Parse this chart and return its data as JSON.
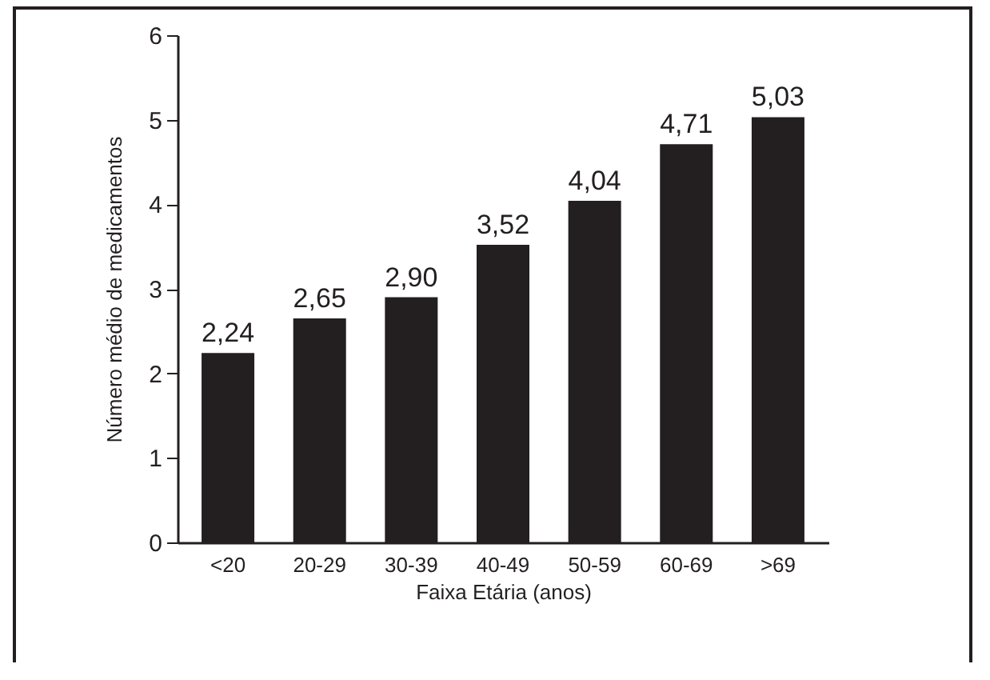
{
  "chart_data": {
    "type": "bar",
    "xlabel": "Faixa Etária (anos)",
    "ylabel": "Número médio de medicamentos",
    "categories": [
      "<20",
      "20-29",
      "30-39",
      "40-49",
      "50-59",
      "60-69",
      ">69"
    ],
    "values": [
      2.24,
      2.65,
      2.9,
      3.52,
      4.04,
      4.71,
      5.03
    ],
    "value_labels": [
      "2,24",
      "2,65",
      "2,90",
      "3,52",
      "4,04",
      "4,71",
      "5,03"
    ],
    "color": "#231f20",
    "ylim": [
      0,
      6
    ],
    "yticks": [
      0,
      1,
      2,
      3,
      4,
      5,
      6
    ],
    "grid": false
  }
}
